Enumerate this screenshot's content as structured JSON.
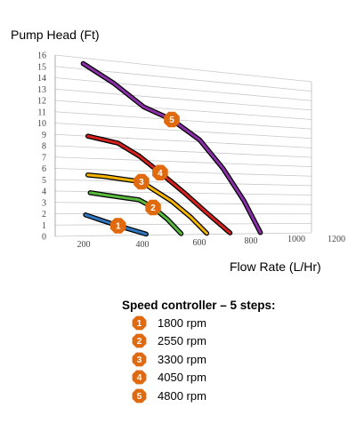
{
  "chart_data": {
    "type": "line",
    "ylabel": "Pump Head (Ft)",
    "xlabel": "Flow Rate (L/Hr)",
    "x_ticks": [
      200,
      400,
      600,
      800,
      1000,
      1200
    ],
    "y_ticks": [
      0,
      1,
      2,
      3,
      4,
      5,
      6,
      7,
      8,
      9,
      10,
      11,
      12,
      13,
      14,
      15,
      16
    ],
    "xlim": [
      0,
      1200
    ],
    "ylim": [
      0,
      16
    ],
    "grid": true,
    "series": [
      {
        "marker": "1",
        "color": "#2f78c4",
        "x": [
          130,
          200,
          270,
          330,
          390
        ],
        "y": [
          1.9,
          1.4,
          0.9,
          0.5,
          0.1
        ]
      },
      {
        "marker": "2",
        "color": "#59b93c",
        "x": [
          150,
          220,
          290,
          360,
          420,
          480,
          540
        ],
        "y": [
          3.9,
          3.7,
          3.5,
          3.3,
          2.6,
          1.5,
          0.1
        ]
      },
      {
        "marker": "3",
        "color": "#f4b400",
        "x": [
          140,
          210,
          290,
          370,
          420,
          500,
          580,
          650
        ],
        "y": [
          5.5,
          5.4,
          5.2,
          5.0,
          4.3,
          3.2,
          1.7,
          0.1
        ]
      },
      {
        "marker": "4",
        "color": "#d42120",
        "x": [
          140,
          270,
          360,
          450,
          550,
          650,
          750
        ],
        "y": [
          9.0,
          8.5,
          7.4,
          5.9,
          4.1,
          2.1,
          0.1
        ]
      },
      {
        "marker": "5",
        "color": "#8a2fa8",
        "x": [
          120,
          250,
          380,
          500,
          620,
          720,
          810,
          880
        ],
        "y": [
          15.5,
          14.0,
          12.0,
          11.0,
          9.2,
          6.5,
          3.3,
          0.1
        ]
      }
    ]
  },
  "legend": {
    "title": "Speed controller – 5 steps:",
    "items": [
      {
        "marker": "1",
        "label": "1800 rpm"
      },
      {
        "marker": "2",
        "label": "2550 rpm"
      },
      {
        "marker": "3",
        "label": "3300 rpm"
      },
      {
        "marker": "4",
        "label": "4050 rpm"
      },
      {
        "marker": "5",
        "label": "4800 rpm"
      }
    ]
  },
  "colors": {
    "marker": "#e06a10",
    "grid": "#c8c8c8"
  }
}
